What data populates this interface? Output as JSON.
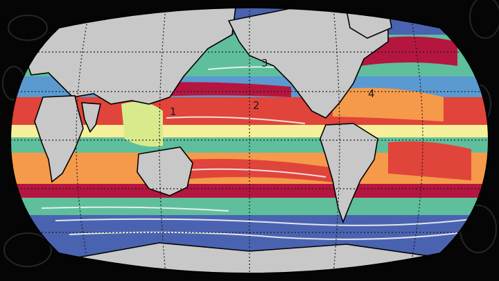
{
  "map": {
    "projection": "robinson-like",
    "colors": {
      "background": "#050505",
      "ocean_base": "#5a9ad0",
      "land": "#c8c8c8",
      "coastline": "#000000",
      "graticule": "#1a1a1a",
      "ice_white": "#f4f4f4",
      "province_blue": "#4a63b0",
      "province_teal": "#5fbf9c",
      "province_yellow": "#f5ef9a",
      "province_orange": "#f59a4a",
      "province_red": "#e0443a",
      "province_crimson": "#b5163f",
      "province_lime": "#d7eb8d"
    },
    "region_labels": [
      "1",
      "2",
      "3",
      "4"
    ],
    "decor": "faint-plankton-silhouettes"
  }
}
